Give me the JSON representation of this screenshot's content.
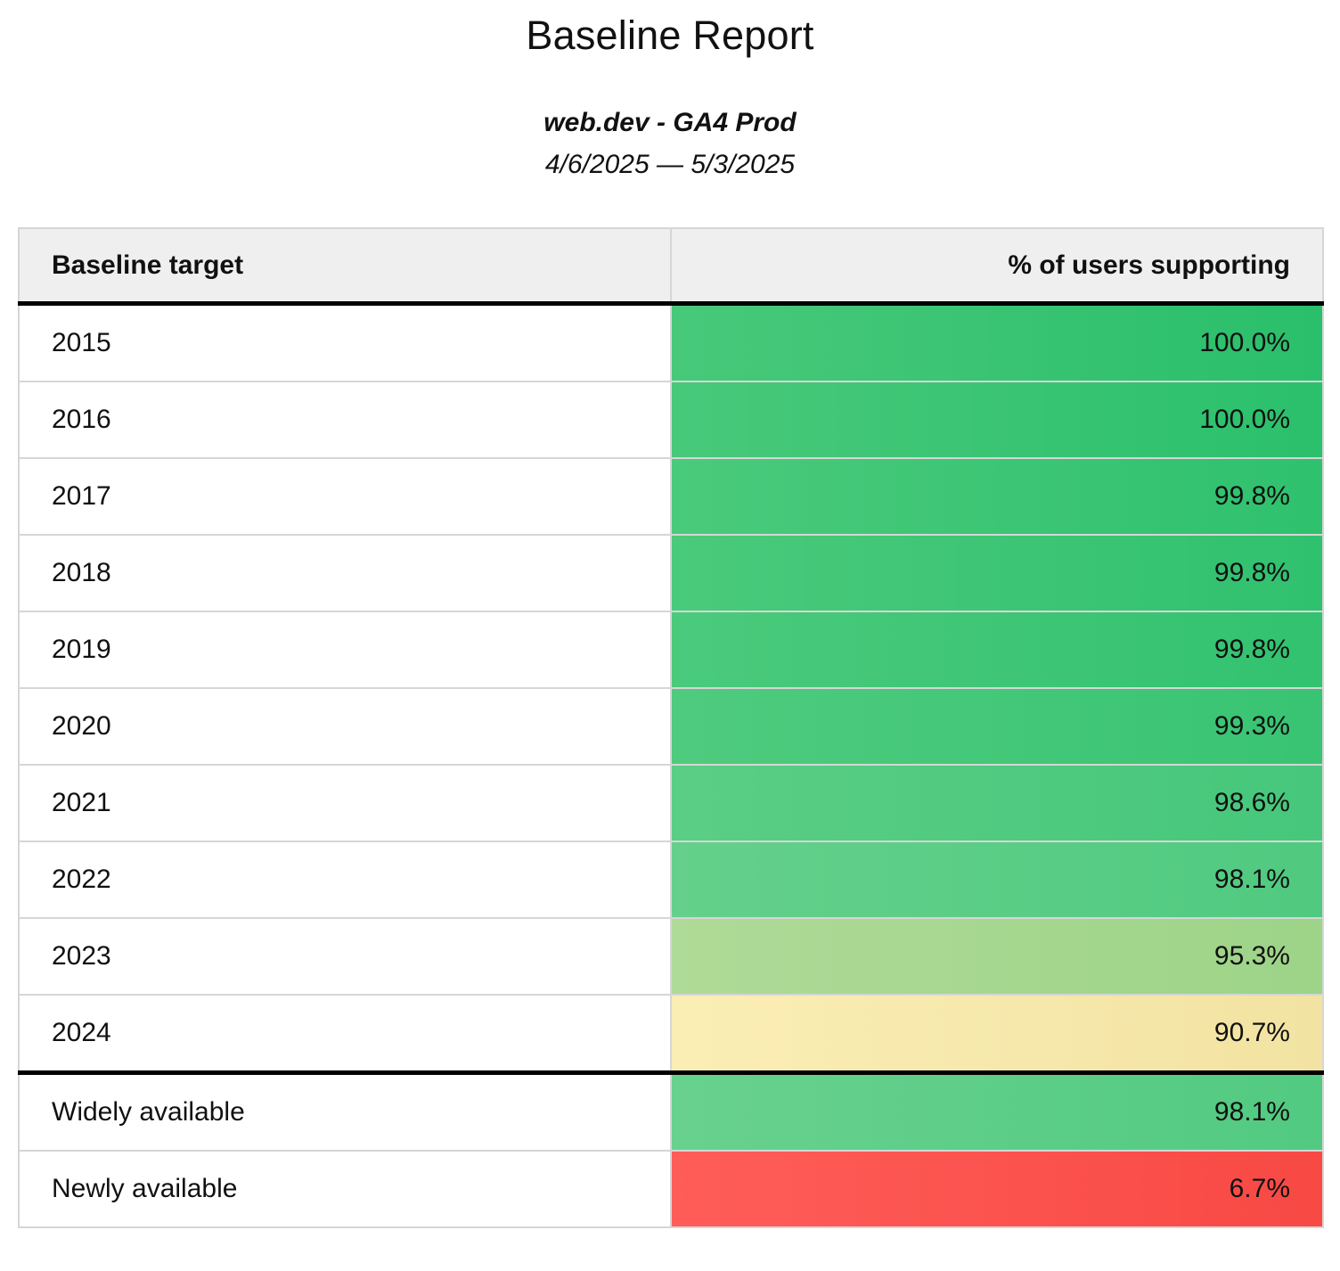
{
  "report": {
    "title": "Baseline Report",
    "subtitle": "web.dev - GA4 Prod",
    "date_range": "4/6/2025 — 5/3/2025"
  },
  "table": {
    "columns": [
      "Baseline target",
      "% of users supporting"
    ],
    "rows": [
      {
        "label": "2015",
        "value": "100.0%",
        "group": "years",
        "color_left": "#48C97A",
        "color_right": "#2ABF6B"
      },
      {
        "label": "2016",
        "value": "100.0%",
        "group": "years",
        "color_left": "#48C97A",
        "color_right": "#2BC06C"
      },
      {
        "label": "2017",
        "value": "99.8%",
        "group": "years",
        "color_left": "#4ACA7B",
        "color_right": "#2FC16E"
      },
      {
        "label": "2018",
        "value": "99.8%",
        "group": "years",
        "color_left": "#4ACA7B",
        "color_right": "#30C16F"
      },
      {
        "label": "2019",
        "value": "99.8%",
        "group": "years",
        "color_left": "#4BCA7C",
        "color_right": "#32C270"
      },
      {
        "label": "2020",
        "value": "99.3%",
        "group": "years",
        "color_left": "#4FCB7E",
        "color_right": "#38C473"
      },
      {
        "label": "2021",
        "value": "98.6%",
        "group": "years",
        "color_left": "#5ACE85",
        "color_right": "#46C77B"
      },
      {
        "label": "2022",
        "value": "98.1%",
        "group": "years",
        "color_left": "#64D08B",
        "color_right": "#50CA80"
      },
      {
        "label": "2023",
        "value": "95.3%",
        "group": "years",
        "color_left": "#AFDA97",
        "color_right": "#9DD488"
      },
      {
        "label": "2024",
        "value": "90.7%",
        "group": "years",
        "color_left": "#FBEEB5",
        "color_right": "#F2E3A2"
      },
      {
        "label": "Widely available",
        "value": "98.1%",
        "group": "availability",
        "color_left": "#68D18E",
        "color_right": "#52CA81"
      },
      {
        "label": "Newly available",
        "value": "6.7%",
        "group": "availability",
        "color_left": "#FF5D59",
        "color_right": "#F84944"
      }
    ]
  },
  "palette": {
    "header_background": "#EFEFEF",
    "grid_border": "#D6D6D6",
    "section_border": "#000000",
    "text": "#111111"
  },
  "chart_data": {
    "type": "table",
    "title": "Baseline Report",
    "subtitle": "web.dev - GA4 Prod",
    "date_range": "4/6/2025 — 5/3/2025",
    "columns": [
      "Baseline target",
      "% of users supporting"
    ],
    "rows": [
      [
        "2015",
        100.0
      ],
      [
        "2016",
        100.0
      ],
      [
        "2017",
        99.8
      ],
      [
        "2018",
        99.8
      ],
      [
        "2019",
        99.8
      ],
      [
        "2020",
        99.3
      ],
      [
        "2021",
        98.6
      ],
      [
        "2022",
        98.1
      ],
      [
        "2023",
        95.3
      ],
      [
        "2024",
        90.7
      ],
      [
        "Widely available",
        98.1
      ],
      [
        "Newly available",
        6.7
      ]
    ],
    "value_unit": "%",
    "color_scale": "green (high support) → yellow (mid) → red (low support)"
  }
}
